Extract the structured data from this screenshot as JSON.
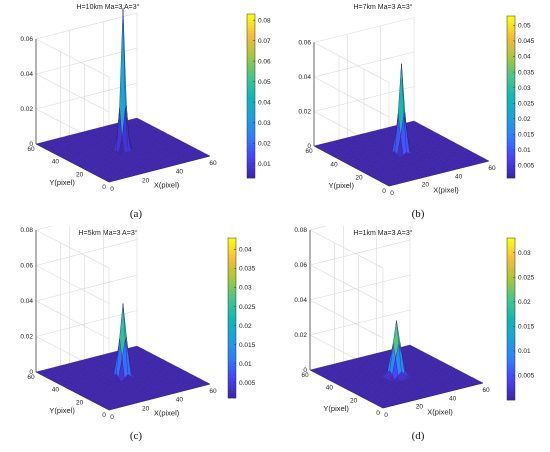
{
  "chart_data": [
    {
      "type": "surface",
      "title": "H=10km Ma=3 A=3°",
      "caption": "(a)",
      "xlabel": "X(pixel)",
      "ylabel": "Y(pixel)",
      "xlim": [
        0,
        60
      ],
      "ylim": [
        0,
        60
      ],
      "zlim": [
        0,
        0.08
      ],
      "x_ticks": [
        "0",
        "20",
        "40",
        "60"
      ],
      "y_ticks": [
        "0",
        "20",
        "40",
        "60"
      ],
      "z_ticks": [
        "0",
        "0.02",
        "0.04",
        "0.06"
      ],
      "colorbar": {
        "min": 0.003,
        "max": 0.083,
        "ticks": [
          "0.01",
          "0.02",
          "0.03",
          "0.04",
          "0.05",
          "0.06",
          "0.07",
          "0.08"
        ],
        "tick_values": [
          0.01,
          0.02,
          0.03,
          0.04,
          0.05,
          0.06,
          0.07,
          0.08
        ]
      },
      "peak": {
        "x": 30,
        "y": 30,
        "z": 0.081,
        "sigma": 1.3
      }
    },
    {
      "type": "surface",
      "title": "H=7km Ma=3 A=3°",
      "caption": "(b)",
      "xlabel": "X(pixel)",
      "ylabel": "Y(pixel)",
      "xlim": [
        0,
        60
      ],
      "ylim": [
        0,
        60
      ],
      "zlim": [
        0,
        0.08
      ],
      "x_ticks": [
        "0",
        "20",
        "40",
        "60"
      ],
      "y_ticks": [
        "0",
        "20",
        "40",
        "60"
      ],
      "z_ticks": [
        "0",
        "0.02",
        "0.04",
        "0.06"
      ],
      "colorbar": {
        "min": 0.001,
        "max": 0.053,
        "ticks": [
          "0.005",
          "0.01",
          "0.015",
          "0.02",
          "0.025",
          "0.03",
          "0.035",
          "0.04",
          "0.045",
          "0.05"
        ],
        "tick_values": [
          0.005,
          0.01,
          0.015,
          0.02,
          0.025,
          0.03,
          0.035,
          0.04,
          0.045,
          0.05
        ]
      },
      "peak": {
        "x": 30,
        "y": 30,
        "z": 0.052,
        "sigma": 1.6
      }
    },
    {
      "type": "surface",
      "title": "H=5km Ma=3 A=3°",
      "caption": "(c)",
      "xlabel": "X(pixel)",
      "ylabel": "Y(pixel)",
      "xlim": [
        0,
        60
      ],
      "ylim": [
        0,
        60
      ],
      "zlim": [
        0,
        0.08
      ],
      "x_ticks": [
        "0",
        "20",
        "40",
        "60"
      ],
      "y_ticks": [
        "0",
        "20",
        "40",
        "60"
      ],
      "z_ticks": [
        "0",
        "0.02",
        "0.04",
        "0.06",
        "0.08"
      ],
      "colorbar": {
        "min": 0.001,
        "max": 0.043,
        "ticks": [
          "0.005",
          "0.01",
          "0.015",
          "0.02",
          "0.025",
          "0.03",
          "0.035",
          "0.04"
        ],
        "tick_values": [
          0.005,
          0.01,
          0.015,
          0.02,
          0.025,
          0.03,
          0.035,
          0.04
        ]
      },
      "peak": {
        "x": 30,
        "y": 30,
        "z": 0.042,
        "sigma": 1.8
      }
    },
    {
      "type": "surface",
      "title": "H=1km Ma=3 A=3°",
      "caption": "(d)",
      "xlabel": "X(pixel)",
      "ylabel": "Y(pixel)",
      "xlim": [
        0,
        60
      ],
      "ylim": [
        0,
        60
      ],
      "zlim": [
        0,
        0.08
      ],
      "x_ticks": [
        "0",
        "20",
        "40",
        "60"
      ],
      "y_ticks": [
        "0",
        "20",
        "40",
        "60"
      ],
      "z_ticks": [
        "0",
        "0.02",
        "0.04",
        "0.06",
        "0.08"
      ],
      "colorbar": {
        "min": 0.0,
        "max": 0.033,
        "ticks": [
          "0.005",
          "0.01",
          "0.015",
          "0.02",
          "0.025",
          "0.03"
        ],
        "tick_values": [
          0.005,
          0.01,
          0.015,
          0.02,
          0.025,
          0.03
        ]
      },
      "peak": {
        "x": 30,
        "y": 30,
        "z": 0.032,
        "sigma": 2.0
      }
    }
  ],
  "colormap": [
    "#3e26a8",
    "#4743f8",
    "#2f7ffb",
    "#1ca2dc",
    "#0cb9b4",
    "#47c68a",
    "#a5c73c",
    "#f6bb39",
    "#f9fb15"
  ]
}
